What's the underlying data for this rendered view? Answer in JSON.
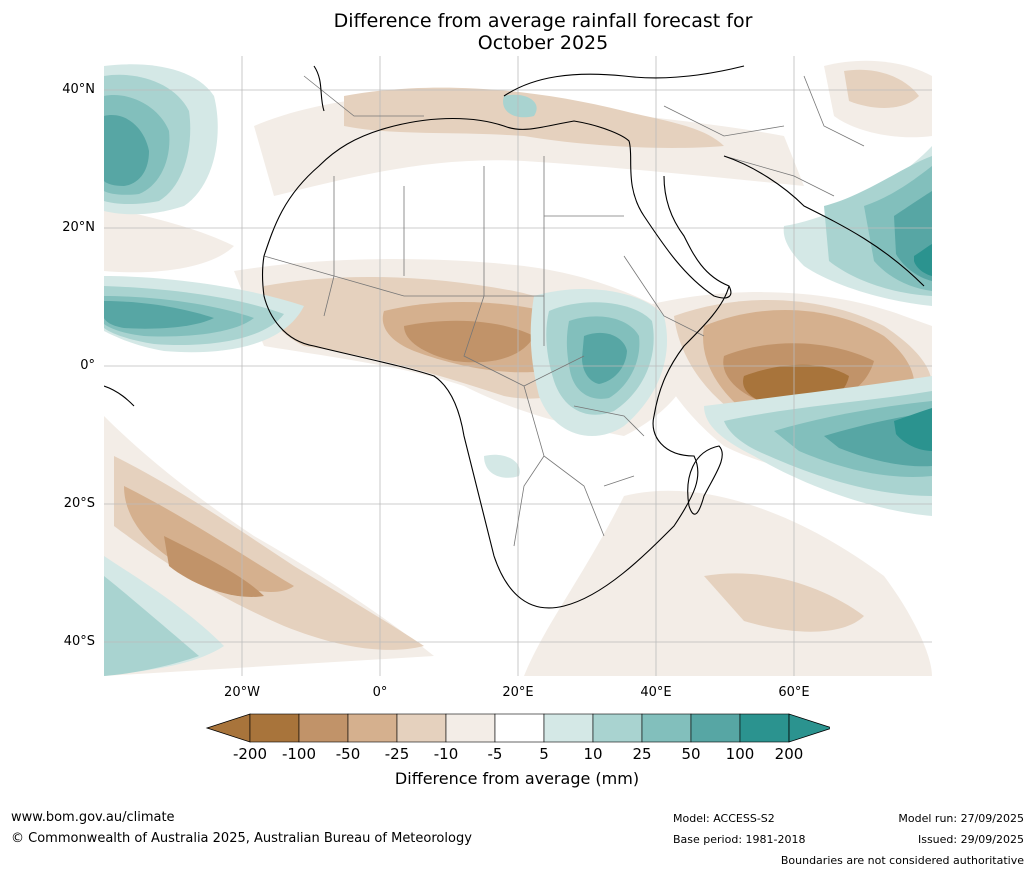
{
  "title": {
    "line1": "Difference from average rainfall forecast for",
    "line2": "October 2025"
  },
  "map": {
    "region": "Africa",
    "lat_labels": [
      "40°N",
      "20°N",
      "0°",
      "20°S",
      "40°S"
    ],
    "lon_labels": [
      "20°W",
      "0°",
      "20°E",
      "40°E",
      "60°E"
    ],
    "colors": {
      "dry_200": "#a8743b",
      "dry_100": "#c19369",
      "dry_50": "#d5b08e",
      "dry_25": "#e5d1be",
      "dry_10": "#f3ede7",
      "neutral": "#ffffff",
      "wet_5": "#d4e8e6",
      "wet_10": "#a9d3d0",
      "wet_25": "#82bfbc",
      "wet_50": "#57a6a4",
      "wet_100": "#2b938f",
      "wet_200": "#1e6d6b",
      "coast": "#000000",
      "border": "#777777",
      "grid": "#bbbbbb"
    }
  },
  "legend": {
    "title": "Difference from average (mm)",
    "ticks": [
      "-200",
      "-100",
      "-50",
      "-25",
      "-10",
      "-5",
      "5",
      "10",
      "25",
      "50",
      "100",
      "200"
    ],
    "colors": [
      "#a8743b",
      "#a8743b",
      "#c19369",
      "#d5b08e",
      "#e5d1be",
      "#f3ede7",
      "#ffffff",
      "#d4e8e6",
      "#a9d3d0",
      "#82bfbc",
      "#57a6a4",
      "#2b938f",
      "#2b938f"
    ]
  },
  "footer": {
    "website": "www.bom.gov.au/climate",
    "copyright": "© Commonwealth of Australia 2025, Australian Bureau of Meteorology",
    "model": "Model: ACCESS-S2",
    "base_period": "Base period: 1981-2018",
    "model_run": "Model run: 27/09/2025",
    "issued": "Issued: 29/09/2025",
    "disclaimer": "Boundaries are not considered authoritative"
  }
}
